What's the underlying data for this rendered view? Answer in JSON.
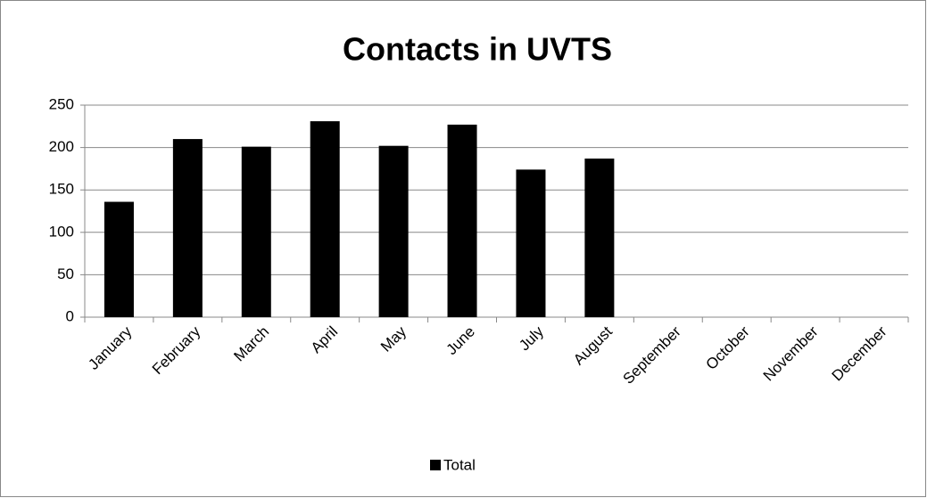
{
  "chart_data": {
    "type": "bar",
    "title": "Contacts in UVTS",
    "categories": [
      "January",
      "February",
      "March",
      "April",
      "May",
      "June",
      "July",
      "August",
      "September",
      "October",
      "November",
      "December"
    ],
    "series": [
      {
        "name": "Total",
        "color": "#000000",
        "values": [
          136,
          210,
          201,
          231,
          202,
          227,
          174,
          187,
          null,
          null,
          null,
          null
        ]
      }
    ],
    "ylim": [
      0,
      250
    ],
    "yticks": [
      0,
      50,
      100,
      150,
      200,
      250
    ],
    "grid": true,
    "legend": "bottom"
  }
}
